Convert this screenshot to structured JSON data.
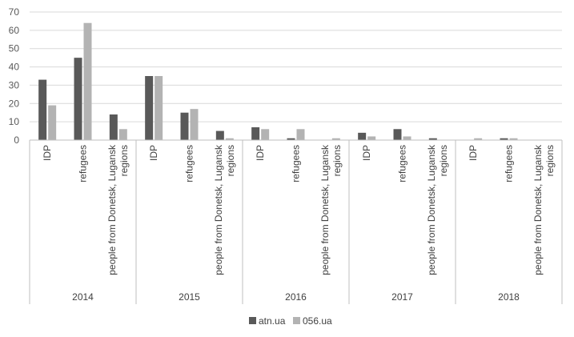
{
  "chart_data": {
    "type": "bar",
    "title": "",
    "xlabel": "",
    "ylabel": "",
    "ylim": [
      0,
      70
    ],
    "yticks": [
      0,
      10,
      20,
      30,
      40,
      50,
      60,
      70
    ],
    "grid": true,
    "legend_position": "bottom",
    "groups": [
      {
        "label": "2014",
        "categories": [
          "IDP",
          "refugees",
          "people from Donetsk, Lugansk regions"
        ]
      },
      {
        "label": "2015",
        "categories": [
          "IDP",
          "refugees",
          "people from Donetsk, Lugansk regions"
        ]
      },
      {
        "label": "2016",
        "categories": [
          "IDP",
          "refugees",
          "people from Donetsk, Lugansk regions"
        ]
      },
      {
        "label": "2017",
        "categories": [
          "IDP",
          "refugees",
          "people from Donetsk, Lugansk regions"
        ]
      },
      {
        "label": "2018",
        "categories": [
          "IDP",
          "refugees",
          "people from Donetsk, Lugansk regions"
        ]
      }
    ],
    "series": [
      {
        "name": "atn.ua",
        "color": "#595959",
        "values": [
          33,
          45,
          14,
          35,
          15,
          5,
          7,
          1,
          0,
          4,
          6,
          1,
          0,
          1,
          0
        ]
      },
      {
        "name": "056.ua",
        "color": "#b3b3b3",
        "values": [
          19,
          64,
          6,
          35,
          17,
          1,
          6,
          6,
          1,
          2,
          2,
          0,
          1,
          1,
          0
        ]
      }
    ]
  }
}
